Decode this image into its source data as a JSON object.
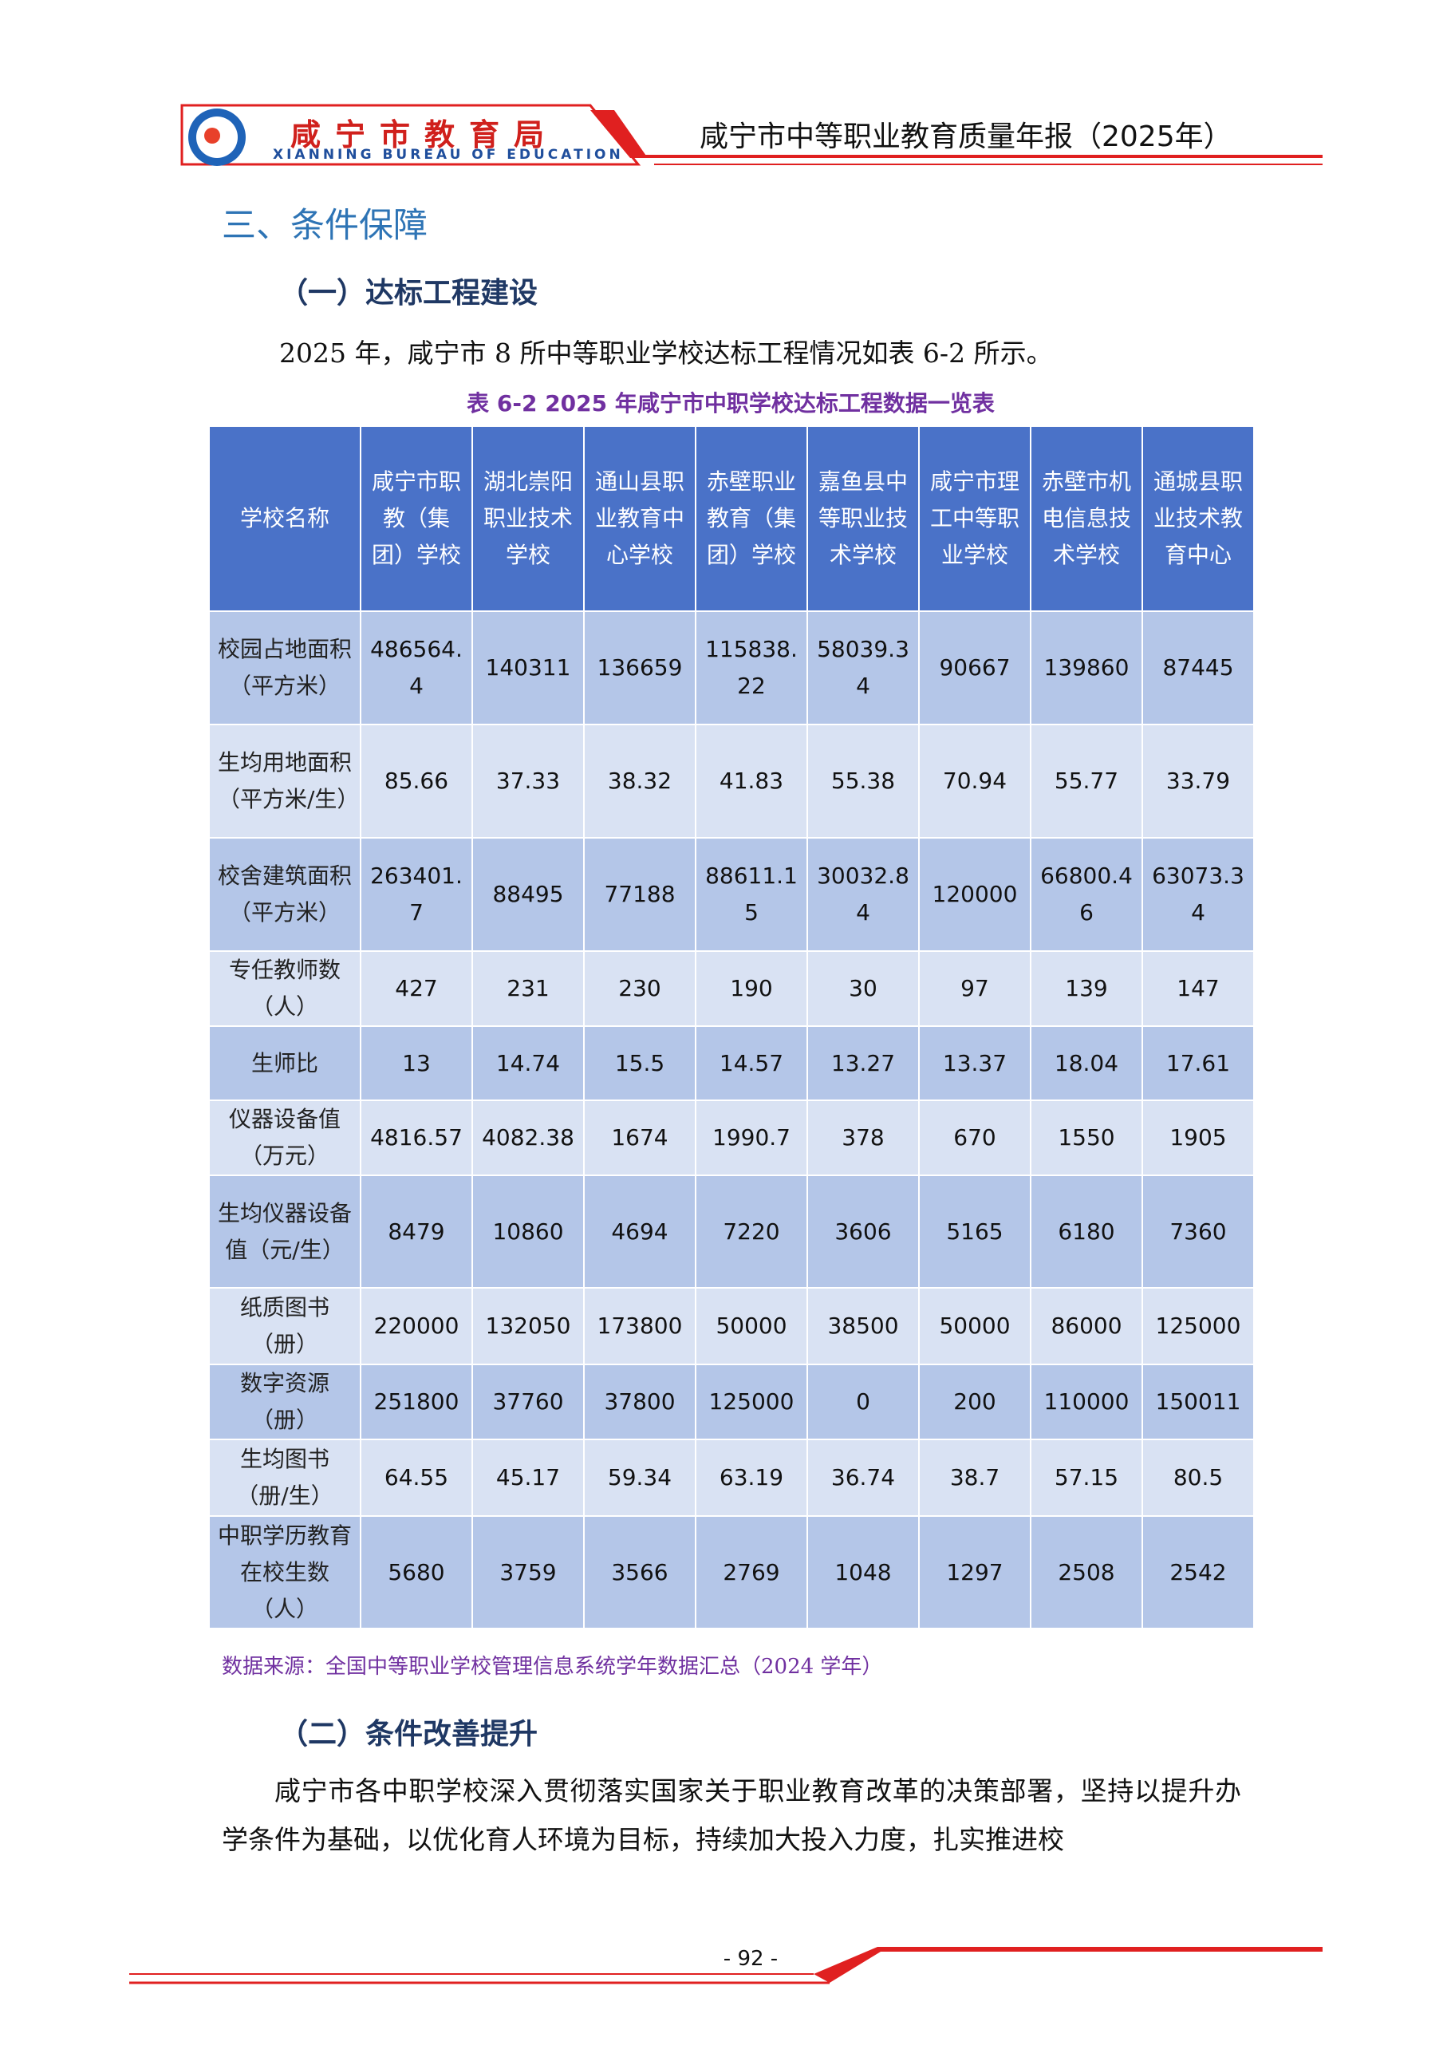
{
  "header": {
    "org_name": "咸宁市教育局",
    "org_name_en": "XIANNING BUREAU OF EDUCATION",
    "report_title": "咸宁市中等职业教育质量年报（2025年）"
  },
  "section_title": "三、条件保障",
  "subsection_1": {
    "title": "（一）达标工程建设",
    "paragraph": "2025 年，咸宁市 8 所中等职业学校达标工程情况如表 6-2 所示。"
  },
  "table": {
    "caption": "表 6-2  2025 年咸宁市中职学校达标工程数据一览表",
    "header": [
      "学校名称",
      "咸宁市职教（集团）学校",
      "湖北崇阳职业技术学校",
      "通山县职业教育中心学校",
      "赤壁职业教育（集团）学校",
      "嘉鱼县中等职业技术学校",
      "咸宁市理工中等职业学校",
      "赤壁市机电信息技术学校",
      "通城县职业技术教育中心"
    ],
    "rows": [
      [
        "校园占地面积（平方米）",
        "486564.4",
        "140311",
        "136659",
        "115838.22",
        "58039.34",
        "90667",
        "139860",
        "87445"
      ],
      [
        "生均用地面积（平方米/生）",
        "85.66",
        "37.33",
        "38.32",
        "41.83",
        "55.38",
        "70.94",
        "55.77",
        "33.79"
      ],
      [
        "校舍建筑面积（平方米）",
        "263401.7",
        "88495",
        "77188",
        "88611.15",
        "30032.84",
        "120000",
        "66800.46",
        "63073.34"
      ],
      [
        "专任教师数（人）",
        "427",
        "231",
        "230",
        "190",
        "30",
        "97",
        "139",
        "147"
      ],
      [
        "生师比",
        "13",
        "14.74",
        "15.5",
        "14.57",
        "13.27",
        "13.37",
        "18.04",
        "17.61"
      ],
      [
        "仪器设备值（万元）",
        "4816.57",
        "4082.38",
        "1674",
        "1990.7",
        "378",
        "670",
        "1550",
        "1905"
      ],
      [
        "生均仪器设备值（元/生）",
        "8479",
        "10860",
        "4694",
        "7220",
        "3606",
        "5165",
        "6180",
        "7360"
      ],
      [
        "纸质图书（册）",
        "220000",
        "132050",
        "173800",
        "50000",
        "38500",
        "50000",
        "86000",
        "125000"
      ],
      [
        "数字资源（册）",
        "251800",
        "37760",
        "37800",
        "125000",
        "0",
        "200",
        "110000",
        "150011"
      ],
      [
        "生均图书（册/生）",
        "64.55",
        "45.17",
        "59.34",
        "63.19",
        "36.74",
        "38.7",
        "57.15",
        "80.5"
      ],
      [
        "中职学历教育在校生数（人）",
        "5680",
        "3759",
        "3566",
        "2769",
        "1048",
        "1297",
        "2508",
        "2542"
      ]
    ],
    "source": "数据来源：全国中等职业学校管理信息系统学年数据汇总（2024 学年）"
  },
  "subsection_2": {
    "title": "（二）条件改善提升",
    "paragraph": "咸宁市各中职学校深入贯彻落实国家关于职业教育改革的决策部署，坚持以提升办学条件为基础，以优化育人环境为目标，持续加大投入力度，扎实推进校"
  },
  "page_number": "- 92 -"
}
